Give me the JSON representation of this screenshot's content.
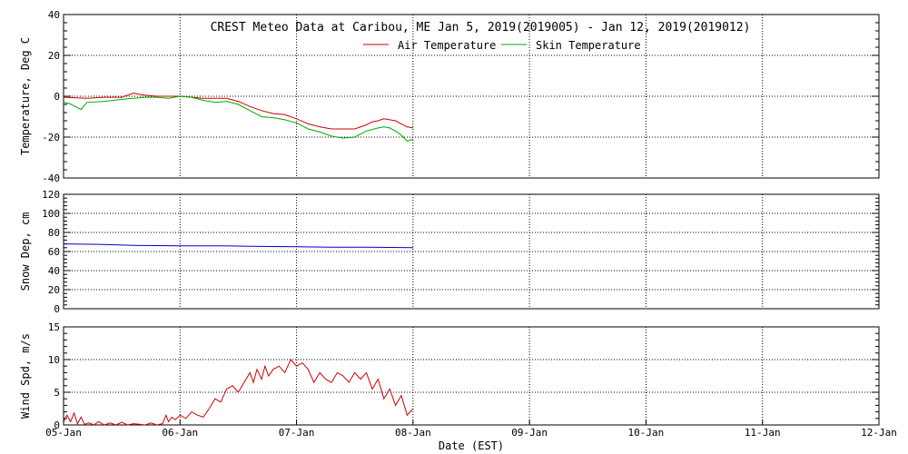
{
  "figure": {
    "title": "CREST Meteo Data at Caribou, ME   Jan  5, 2019(2019005) - Jan 12, 2019(2019012)",
    "xlabel": "Date (EST)",
    "x_ticks": [
      "05-Jan",
      "06-Jan",
      "07-Jan",
      "08-Jan",
      "09-Jan",
      "10-Jan",
      "11-Jan",
      "12-Jan"
    ],
    "colors": {
      "air": "#cc0000",
      "skin": "#00aa00",
      "snow": "#0000cc",
      "wind": "#cc0000",
      "grid": "#000000"
    }
  },
  "chart_data": [
    {
      "type": "line",
      "ylabel": "Temperature, Deg C",
      "ylim": [
        -40,
        40
      ],
      "y_ticks": [
        -40,
        -20,
        0,
        20,
        40
      ],
      "xlim": [
        0,
        7
      ],
      "grid": true,
      "legend": "top-center",
      "series": [
        {
          "name": "Air Temperature",
          "color": "#cc0000",
          "x": [
            0,
            0.2,
            0.35,
            0.5,
            0.6,
            0.7,
            0.8,
            0.9,
            1.0,
            1.1,
            1.2,
            1.3,
            1.4,
            1.5,
            1.6,
            1.7,
            1.8,
            1.9,
            2.0,
            2.1,
            2.2,
            2.3,
            2.4,
            2.5,
            2.6,
            2.65,
            2.7,
            2.75,
            2.8,
            2.85,
            2.9,
            2.95,
            3.0
          ],
          "y": [
            -0.5,
            -1,
            -0.5,
            -0.5,
            1.5,
            0.5,
            0,
            0,
            0,
            -0.5,
            -1,
            -1,
            -1,
            -2.5,
            -5,
            -7,
            -8.5,
            -9,
            -11,
            -13.5,
            -15,
            -16,
            -16,
            -16,
            -14,
            -12.5,
            -12,
            -11,
            -11.5,
            -12,
            -13.5,
            -15,
            -15.5
          ]
        },
        {
          "name": "Skin Temperature",
          "color": "#00aa00",
          "x": [
            0,
            0.05,
            0.1,
            0.15,
            0.2,
            0.35,
            0.5,
            0.6,
            0.7,
            0.8,
            0.9,
            1.0,
            1.1,
            1.2,
            1.3,
            1.4,
            1.5,
            1.6,
            1.7,
            1.8,
            1.9,
            2.0,
            2.1,
            2.2,
            2.3,
            2.4,
            2.5,
            2.55,
            2.6,
            2.7,
            2.75,
            2.8,
            2.85,
            2.9,
            2.95,
            3.0
          ],
          "y": [
            -3,
            -3.5,
            -5,
            -6.5,
            -3,
            -2.5,
            -1.5,
            -1,
            -0.5,
            -0.5,
            -1,
            0,
            -0.5,
            -2,
            -3,
            -2.5,
            -4,
            -7,
            -10,
            -10.5,
            -11.5,
            -13,
            -16,
            -17.5,
            -19.5,
            -20.5,
            -20,
            -18.5,
            -17,
            -15.5,
            -15,
            -15.5,
            -17,
            -19,
            -22,
            -21
          ]
        }
      ]
    },
    {
      "type": "line",
      "ylabel": "Snow Dep, cm",
      "ylim": [
        0,
        120
      ],
      "y_ticks": [
        0,
        20,
        40,
        60,
        80,
        100,
        120
      ],
      "xlim": [
        0,
        7
      ],
      "grid": true,
      "series": [
        {
          "name": "",
          "color": "#0000cc",
          "x": [
            0,
            0.3,
            0.6,
            1.0,
            1.3,
            1.6,
            2.0,
            2.3,
            2.6,
            3.0
          ],
          "y": [
            68,
            67.5,
            66.5,
            66,
            66,
            65.5,
            65,
            64.5,
            64.5,
            64
          ]
        }
      ]
    },
    {
      "type": "line",
      "ylabel": "Wind Spd, m/s",
      "ylim": [
        0,
        15
      ],
      "y_ticks": [
        0,
        5,
        10,
        15
      ],
      "xlim": [
        0,
        7
      ],
      "grid": true,
      "series": [
        {
          "name": "",
          "color": "#cc0000",
          "x": [
            0,
            0.03,
            0.06,
            0.09,
            0.12,
            0.15,
            0.18,
            0.22,
            0.26,
            0.3,
            0.35,
            0.4,
            0.45,
            0.5,
            0.55,
            0.6,
            0.65,
            0.7,
            0.75,
            0.8,
            0.85,
            0.88,
            0.9,
            0.93,
            0.96,
            1.0,
            1.05,
            1.1,
            1.15,
            1.2,
            1.25,
            1.3,
            1.35,
            1.4,
            1.45,
            1.5,
            1.55,
            1.6,
            1.63,
            1.66,
            1.7,
            1.73,
            1.76,
            1.8,
            1.85,
            1.9,
            1.95,
            2.0,
            2.05,
            2.1,
            2.15,
            2.2,
            2.25,
            2.3,
            2.35,
            2.4,
            2.45,
            2.5,
            2.55,
            2.6,
            2.65,
            2.7,
            2.75,
            2.8,
            2.85,
            2.9,
            2.95,
            3.0
          ],
          "y": [
            0.5,
            1.5,
            0.5,
            1.8,
            0.2,
            1.2,
            0.1,
            0.3,
            0,
            0.5,
            0,
            0.3,
            0,
            0.4,
            0,
            0.2,
            0.1,
            0,
            0.3,
            0,
            0.2,
            1.5,
            0.5,
            1.2,
            0.8,
            1.5,
            1.0,
            2.0,
            1.5,
            1.2,
            2.5,
            4.0,
            3.5,
            5.5,
            6.0,
            5.0,
            6.5,
            8.0,
            6.5,
            8.5,
            7.0,
            9.0,
            7.5,
            8.5,
            9.0,
            8.0,
            10.0,
            9.0,
            9.5,
            8.5,
            6.5,
            8.0,
            7.0,
            6.5,
            8.0,
            7.5,
            6.5,
            8.0,
            7.0,
            8.0,
            5.5,
            7.0,
            4.0,
            5.5,
            3.0,
            4.5,
            1.5,
            2.5
          ]
        }
      ]
    }
  ]
}
